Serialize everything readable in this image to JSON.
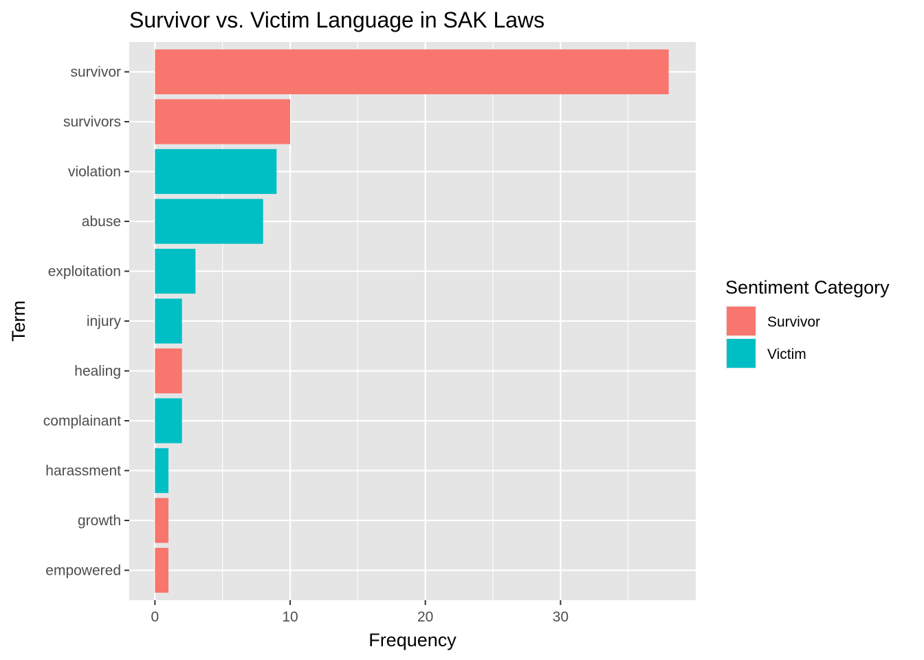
{
  "chart_data": {
    "type": "bar",
    "orientation": "horizontal",
    "title": "Survivor vs. Victim Language in SAK Laws",
    "xlabel": "Frequency",
    "ylabel": "Term",
    "xlim": [
      -1.9,
      40
    ],
    "x_ticks": [
      0,
      10,
      20,
      30
    ],
    "grid": true,
    "legend_position": "right",
    "legend_title": "Sentiment Category",
    "categories": [
      "survivor",
      "survivors",
      "violation",
      "abuse",
      "exploitation",
      "injury",
      "healing",
      "complainant",
      "harassment",
      "growth",
      "empowered"
    ],
    "values": [
      38,
      10,
      9,
      8,
      3,
      2,
      2,
      2,
      1,
      1,
      1
    ],
    "fill_category": [
      "Survivor",
      "Survivor",
      "Victim",
      "Victim",
      "Victim",
      "Victim",
      "Survivor",
      "Victim",
      "Victim",
      "Survivor",
      "Survivor"
    ],
    "series": [
      {
        "name": "Survivor",
        "color": "#F8766D"
      },
      {
        "name": "Victim",
        "color": "#00BFC4"
      }
    ]
  },
  "colors": {
    "panel_background": "#EBEBEB",
    "grid": "#FFFFFF",
    "tick": "#333333"
  }
}
